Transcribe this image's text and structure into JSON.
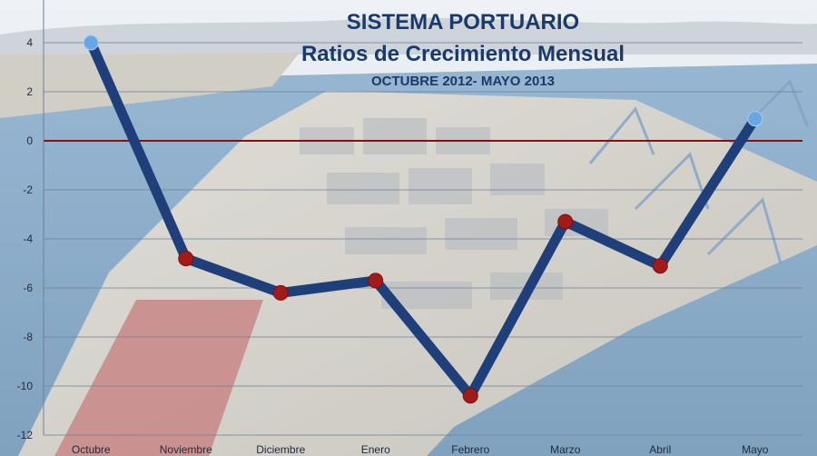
{
  "chart_data": {
    "type": "line",
    "title": "SISTEMA PORTUARIO",
    "subtitle": "Ratios de Crecimiento Mensual",
    "period": "OCTUBRE 2012- MAYO 2013",
    "xlabel": "",
    "ylabel": "",
    "categories": [
      "Octubre",
      "Noviembre",
      "Diciembre",
      "Enero",
      "Febrero",
      "Marzo",
      "Abril",
      "Mayo"
    ],
    "series": [
      {
        "values": [
          4.0,
          -4.8,
          -6.2,
          -5.7,
          -10.4,
          -3.3,
          -5.1,
          0.9
        ]
      }
    ],
    "ylim": [
      -12,
      4
    ],
    "yticks": [
      4,
      2,
      0,
      -2,
      -4,
      -6,
      -8,
      -10,
      -12
    ],
    "grid": true,
    "legend": "none",
    "colors": {
      "line": "#1f3f7a",
      "marker_default": "#a11b1b",
      "marker_highlight": "#6aa5e8",
      "zero_line": "#8a1010",
      "grid": "#6d7f98",
      "title": "#1b3a6b",
      "sky": "#dfe6ee",
      "water": "#5e8fb8",
      "land": "#c9c6bd",
      "roof": "#b65a5a"
    }
  }
}
